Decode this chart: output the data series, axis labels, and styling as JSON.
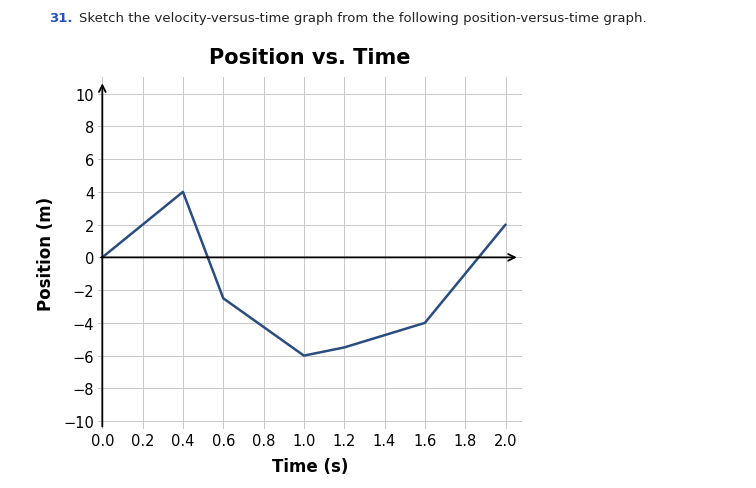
{
  "title": "Position vs. Time",
  "xlabel": "Time (s)",
  "ylabel": "Position (m)",
  "annotation_number": "31",
  "annotation_body": "Sketch the velocity-versus-time graph from the following position-versus-time graph.",
  "x_data": [
    0,
    0.4,
    0.6,
    1.0,
    1.2,
    1.6,
    2.0
  ],
  "y_data": [
    0,
    4,
    -2.5,
    -6.0,
    -5.5,
    -4.0,
    2.0
  ],
  "line_color": "#2a4d7f",
  "xlim": [
    0,
    2.0
  ],
  "ylim": [
    -10,
    10
  ],
  "xticks": [
    0,
    0.2,
    0.4,
    0.6,
    0.8,
    1.0,
    1.2,
    1.4,
    1.6,
    1.8,
    2.0
  ],
  "yticks": [
    -10,
    -8,
    -6,
    -4,
    -2,
    0,
    2,
    4,
    6,
    8,
    10
  ],
  "grid_color": "#c8c8c8",
  "background_color": "#ffffff",
  "title_fontsize": 15,
  "label_fontsize": 12,
  "tick_fontsize": 10.5,
  "line_width": 1.8,
  "fig_width": 7.56,
  "fig_height": 4.89,
  "dpi": 100
}
